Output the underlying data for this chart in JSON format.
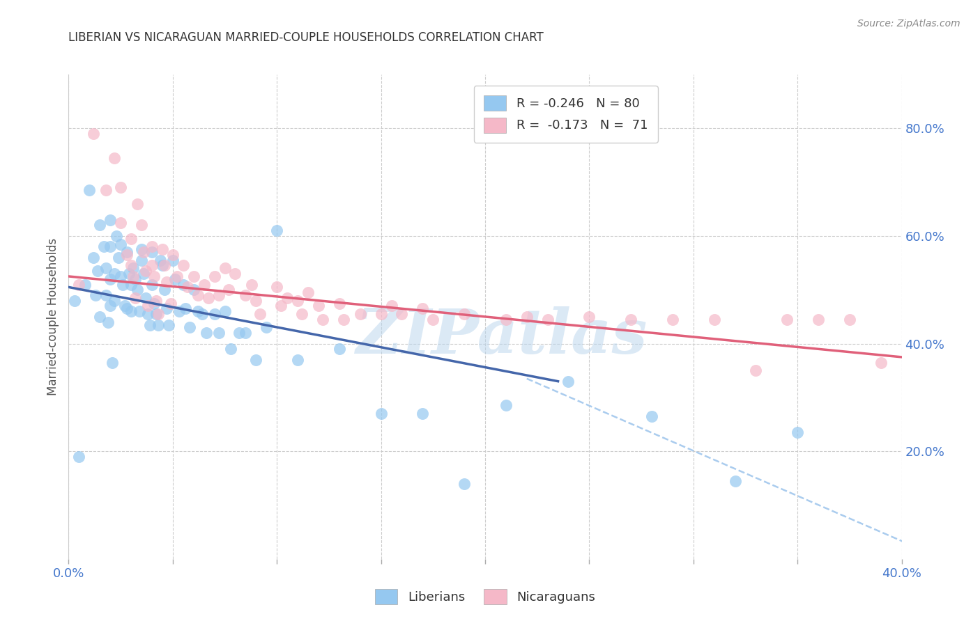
{
  "title": "LIBERIAN VS NICARAGUAN MARRIED-COUPLE HOUSEHOLDS CORRELATION CHART",
  "source": "Source: ZipAtlas.com",
  "ylabel": "Married-couple Households",
  "xlim": [
    0.0,
    0.4
  ],
  "ylim": [
    0.0,
    0.9
  ],
  "yticks_right": [
    0.2,
    0.4,
    0.6,
    0.8
  ],
  "ytick_labels_right": [
    "20.0%",
    "40.0%",
    "60.0%",
    "80.0%"
  ],
  "watermark": "ZIPatlas",
  "legend_liberian": "R = -0.246   N = 80",
  "legend_nicaraguan": "R =  -0.173   N =  71",
  "liberian_color": "#95C8F0",
  "nicaraguan_color": "#F5B8C8",
  "liberian_line_color": "#4466AA",
  "nicaraguan_line_color": "#E0607A",
  "dashed_line_color": "#AACCEE",
  "background_color": "#FFFFFF",
  "grid_color": "#CCCCCC",
  "liberian_scatter_x": [
    0.003,
    0.005,
    0.008,
    0.01,
    0.012,
    0.013,
    0.014,
    0.015,
    0.015,
    0.017,
    0.018,
    0.018,
    0.019,
    0.02,
    0.02,
    0.02,
    0.02,
    0.021,
    0.022,
    0.022,
    0.023,
    0.024,
    0.025,
    0.025,
    0.026,
    0.027,
    0.028,
    0.028,
    0.029,
    0.03,
    0.03,
    0.031,
    0.032,
    0.033,
    0.034,
    0.035,
    0.035,
    0.036,
    0.037,
    0.038,
    0.039,
    0.04,
    0.04,
    0.041,
    0.042,
    0.043,
    0.044,
    0.045,
    0.046,
    0.047,
    0.048,
    0.05,
    0.051,
    0.053,
    0.055,
    0.056,
    0.058,
    0.06,
    0.062,
    0.064,
    0.066,
    0.07,
    0.072,
    0.075,
    0.078,
    0.082,
    0.085,
    0.09,
    0.095,
    0.1,
    0.11,
    0.13,
    0.15,
    0.17,
    0.19,
    0.21,
    0.24,
    0.28,
    0.32,
    0.35
  ],
  "liberian_scatter_y": [
    0.48,
    0.19,
    0.51,
    0.685,
    0.56,
    0.49,
    0.535,
    0.62,
    0.45,
    0.58,
    0.54,
    0.49,
    0.44,
    0.63,
    0.58,
    0.52,
    0.47,
    0.365,
    0.53,
    0.48,
    0.6,
    0.56,
    0.585,
    0.525,
    0.51,
    0.47,
    0.465,
    0.57,
    0.53,
    0.51,
    0.46,
    0.54,
    0.52,
    0.5,
    0.46,
    0.575,
    0.555,
    0.53,
    0.485,
    0.455,
    0.435,
    0.57,
    0.51,
    0.475,
    0.455,
    0.435,
    0.555,
    0.545,
    0.5,
    0.465,
    0.435,
    0.555,
    0.52,
    0.46,
    0.51,
    0.465,
    0.43,
    0.5,
    0.46,
    0.455,
    0.42,
    0.455,
    0.42,
    0.46,
    0.39,
    0.42,
    0.42,
    0.37,
    0.43,
    0.61,
    0.37,
    0.39,
    0.27,
    0.27,
    0.14,
    0.285,
    0.33,
    0.265,
    0.145,
    0.235
  ],
  "nicaraguan_scatter_x": [
    0.005,
    0.012,
    0.018,
    0.022,
    0.025,
    0.025,
    0.028,
    0.03,
    0.03,
    0.031,
    0.032,
    0.033,
    0.035,
    0.036,
    0.037,
    0.038,
    0.04,
    0.04,
    0.041,
    0.042,
    0.043,
    0.045,
    0.046,
    0.047,
    0.049,
    0.05,
    0.052,
    0.055,
    0.057,
    0.06,
    0.062,
    0.065,
    0.067,
    0.07,
    0.072,
    0.075,
    0.077,
    0.08,
    0.085,
    0.088,
    0.09,
    0.092,
    0.1,
    0.102,
    0.105,
    0.11,
    0.112,
    0.115,
    0.12,
    0.122,
    0.13,
    0.132,
    0.14,
    0.15,
    0.155,
    0.16,
    0.17,
    0.175,
    0.19,
    0.21,
    0.22,
    0.23,
    0.25,
    0.27,
    0.29,
    0.31,
    0.33,
    0.345,
    0.36,
    0.375,
    0.39
  ],
  "nicaraguan_scatter_y": [
    0.51,
    0.79,
    0.685,
    0.745,
    0.69,
    0.625,
    0.565,
    0.595,
    0.545,
    0.525,
    0.485,
    0.66,
    0.62,
    0.57,
    0.535,
    0.47,
    0.58,
    0.545,
    0.525,
    0.48,
    0.455,
    0.575,
    0.545,
    0.515,
    0.475,
    0.565,
    0.525,
    0.545,
    0.505,
    0.525,
    0.49,
    0.51,
    0.485,
    0.525,
    0.49,
    0.54,
    0.5,
    0.53,
    0.49,
    0.51,
    0.48,
    0.455,
    0.505,
    0.47,
    0.485,
    0.48,
    0.455,
    0.495,
    0.47,
    0.445,
    0.475,
    0.445,
    0.455,
    0.455,
    0.47,
    0.455,
    0.465,
    0.445,
    0.455,
    0.445,
    0.45,
    0.445,
    0.45,
    0.445,
    0.445,
    0.445,
    0.35,
    0.445,
    0.445,
    0.445,
    0.365
  ],
  "blue_line_x": [
    0.0,
    0.235
  ],
  "blue_line_y": [
    0.505,
    0.33
  ],
  "pink_line_x": [
    0.0,
    0.4
  ],
  "pink_line_y": [
    0.525,
    0.375
  ],
  "dashed_line_x": [
    0.22,
    0.405
  ],
  "dashed_line_y": [
    0.335,
    0.025
  ]
}
